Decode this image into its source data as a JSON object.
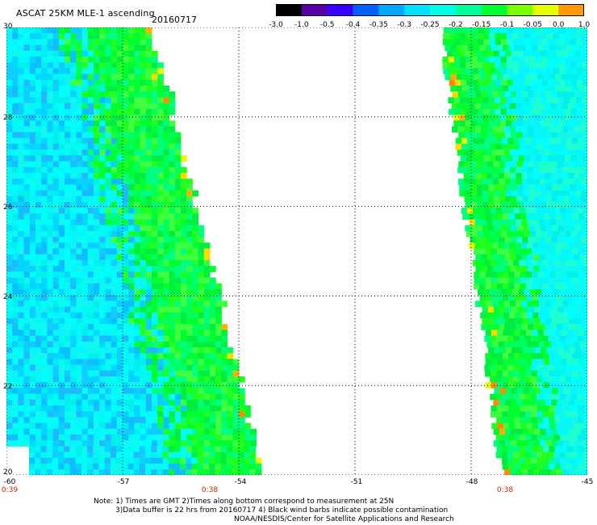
{
  "header": {
    "title": "ASCAT 25KM MLE-1 ascending",
    "date": "20160717"
  },
  "colorbar": {
    "tick_labels": [
      "-3.0",
      "-1.0",
      "-0.5",
      "-0.4",
      "-0.35",
      "-0.3",
      "-0.25",
      "-0.2",
      "-0.15",
      "-0.1",
      "-0.05",
      "0.0",
      "1.0"
    ],
    "colors": [
      "#000000",
      "#5a00a8",
      "#3a00ff",
      "#0060ff",
      "#00a8ff",
      "#00e0ff",
      "#00ffe6",
      "#00ff9a",
      "#00ff30",
      "#7aff00",
      "#e6ff00",
      "#ff9a00",
      "#ff2000"
    ]
  },
  "map": {
    "lat_labels": [
      "30",
      "28",
      "26",
      "24",
      "22",
      "20"
    ],
    "lon_labels": [
      "-60",
      "-57",
      "-54",
      "-51",
      "-48",
      "-45"
    ],
    "time_labels": [
      "0:39",
      "0:38",
      "0:38"
    ],
    "lat_range": [
      20,
      30
    ],
    "lon_range": [
      -60,
      -45
    ],
    "swaths": [
      {
        "name": "west",
        "lat_top": 30,
        "lat_bottom": 20,
        "lon_west": -60,
        "east_edge_top": -56.3,
        "east_edge_bottom": -53.4
      },
      {
        "name": "east",
        "lat_top": 30,
        "lat_bottom": 20,
        "lon_east": -45,
        "west_edge_top": -48.8,
        "west_edge_bottom": -47.2
      }
    ]
  },
  "notes": {
    "line1": "Note: 1) Times are GMT 2)Times along bottom correspond to measurement at 25N",
    "line2": "3)Data buffer is 22 hrs from 20160717 4) Black wind barbs indicate possible contamination",
    "line3": "NOAA/NESDIS/Center for Satellite Applications and Research"
  }
}
